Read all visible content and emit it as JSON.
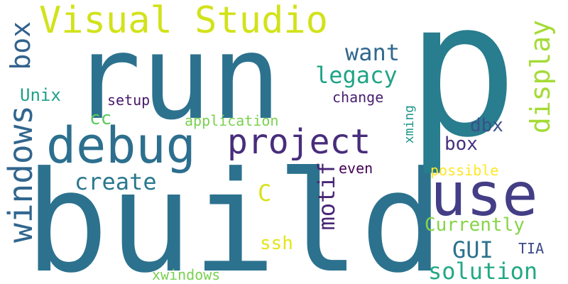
{
  "words": {
    "build": {
      "text": "build",
      "color": "#2c728e"
    },
    "p": {
      "text": "p",
      "color": "#287d8e"
    },
    "run": {
      "text": "run",
      "color": "#2c728e"
    },
    "debug": {
      "text": "debug",
      "color": "#2d6f8e"
    },
    "use": {
      "text": "use",
      "color": "#433e85"
    },
    "project": {
      "text": "project",
      "color": "#472d7b"
    },
    "visual_studio": {
      "text": "Visual Studio",
      "color": "#d2e21b"
    },
    "windows": {
      "text": "windows",
      "color": "#31668e"
    },
    "box_left": {
      "text": "box",
      "color": "#33628d"
    },
    "display": {
      "text": "display",
      "color": "#a5db36"
    },
    "want": {
      "text": "want",
      "color": "#31688e"
    },
    "legacy": {
      "text": "legacy",
      "color": "#20a486"
    },
    "create": {
      "text": "create",
      "color": "#2a788e"
    },
    "solution": {
      "text": "solution",
      "color": "#22a884"
    },
    "motif": {
      "text": "motif",
      "color": "#482576"
    },
    "gui": {
      "text": "GUI",
      "color": "#2c728e"
    },
    "c": {
      "text": "C",
      "color": "#d8e219"
    },
    "currently": {
      "text": "Currently",
      "color": "#86d549"
    },
    "unix": {
      "text": "Unix",
      "color": "#1fa088"
    },
    "cc": {
      "text": "cc",
      "color": "#5ec962"
    },
    "dbx": {
      "text": "dbx",
      "color": "#3b518b"
    },
    "box_right": {
      "text": "box",
      "color": "#46307e"
    },
    "ssh": {
      "text": "ssh",
      "color": "#e5e419"
    },
    "setup": {
      "text": "setup",
      "color": "#48186a"
    },
    "change": {
      "text": "change",
      "color": "#481f70"
    },
    "application": {
      "text": "application",
      "color": "#7ad151"
    },
    "xming": {
      "text": "xming",
      "color": "#1f968b"
    },
    "even": {
      "text": "even",
      "color": "#440154"
    },
    "possible": {
      "text": "possible",
      "color": "#fde725"
    },
    "tia": {
      "text": "TIA",
      "color": "#3e4989"
    },
    "xwindows": {
      "text": "xwindows",
      "color": "#7ad151"
    }
  }
}
